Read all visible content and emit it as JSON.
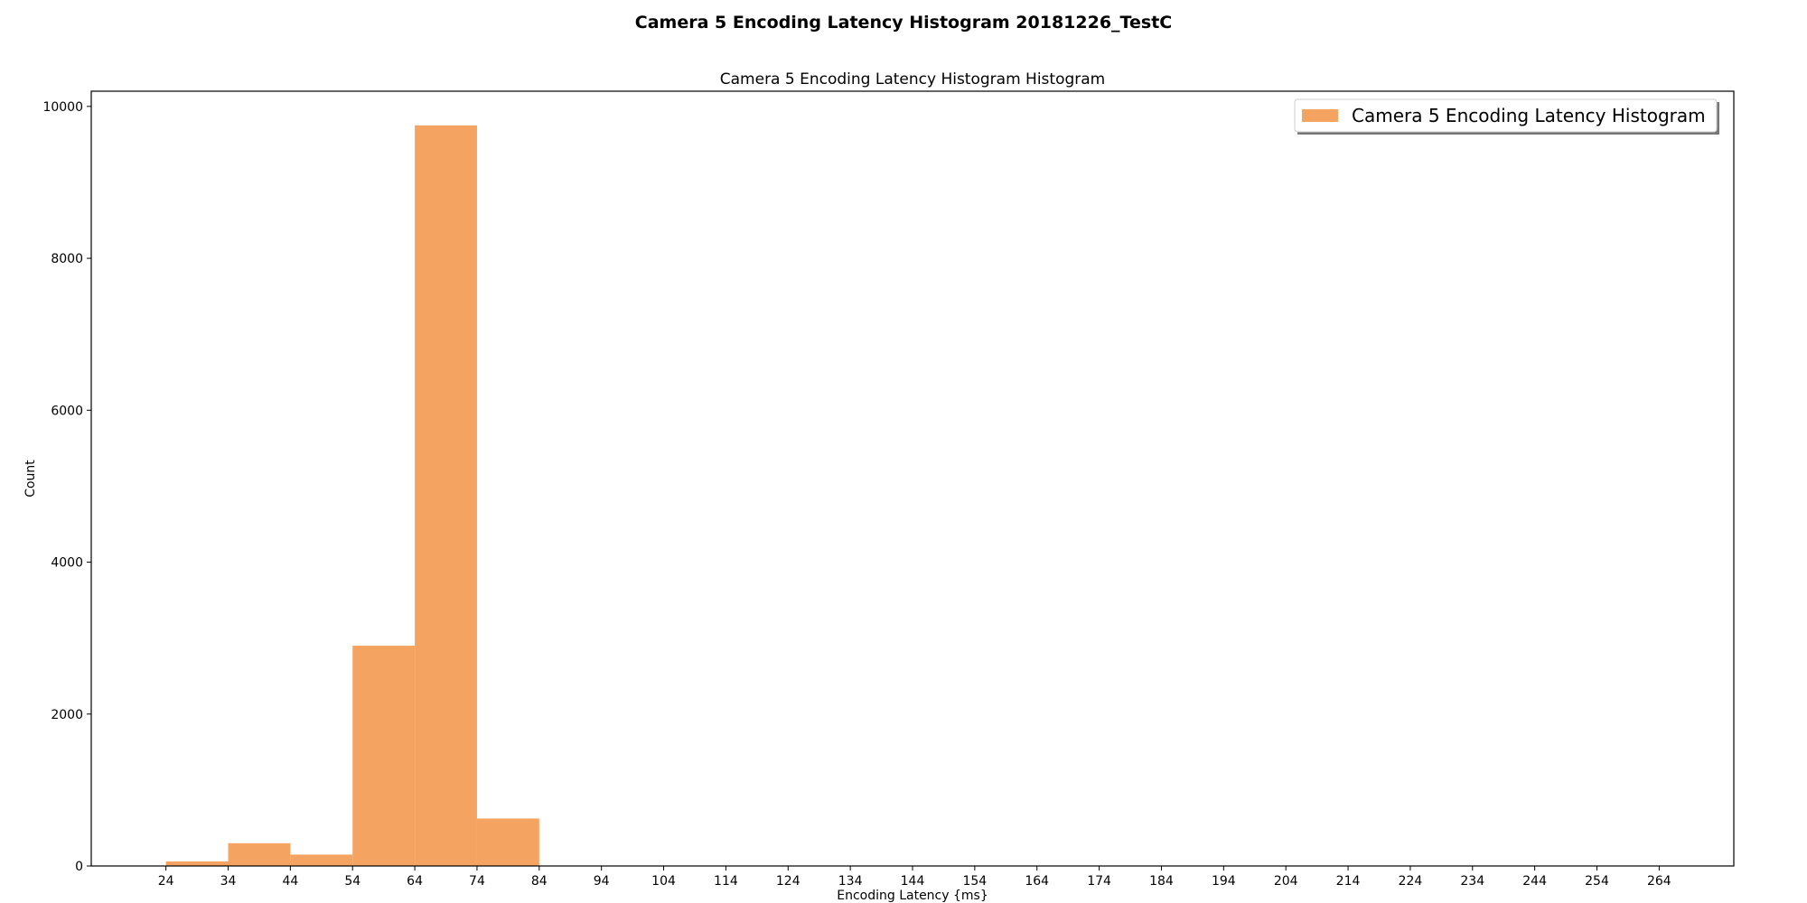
{
  "suptitle": "Camera 5 Encoding Latency Histogram 20181226_TestC",
  "chart_data": {
    "type": "bar",
    "subtype": "histogram",
    "title": "Camera 5 Encoding Latency Histogram Histogram",
    "xlabel": "Encoding Latency {ms}",
    "ylabel": "Count",
    "bin_edges": [
      24,
      34,
      44,
      54,
      64,
      74,
      84
    ],
    "values": [
      60,
      300,
      150,
      2900,
      9750,
      625
    ],
    "xticks": [
      24,
      34,
      44,
      54,
      64,
      74,
      84,
      94,
      104,
      114,
      124,
      134,
      144,
      154,
      164,
      174,
      184,
      194,
      204,
      214,
      224,
      234,
      244,
      254,
      264
    ],
    "yticks": [
      0,
      2000,
      4000,
      6000,
      8000,
      10000
    ],
    "xlim": [
      12,
      276
    ],
    "ylim": [
      0,
      10200
    ],
    "grid": false,
    "legend": {
      "position": "top-right",
      "entries": [
        "Camera 5 Encoding Latency Histogram"
      ]
    },
    "series": [
      {
        "name": "Camera 5 Encoding Latency Histogram",
        "color": "#f4a460"
      }
    ]
  }
}
